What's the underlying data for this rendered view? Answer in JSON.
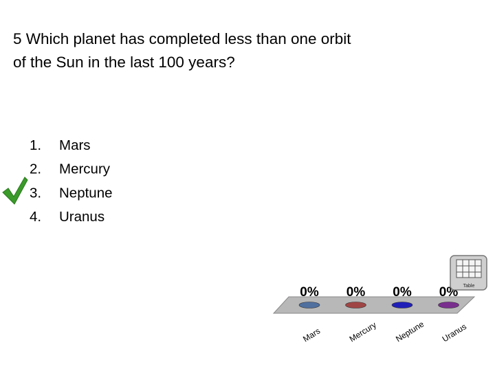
{
  "question": {
    "lines": [
      "5 Which planet has completed less than one orbit",
      "of the Sun in the last 100 years?"
    ]
  },
  "options": [
    {
      "number": "1.",
      "label": "Mars"
    },
    {
      "number": "2.",
      "label": "Mercury"
    },
    {
      "number": "3.",
      "label": "Neptune"
    },
    {
      "number": "4.",
      "label": "Uranus"
    }
  ],
  "table_button": "Table",
  "chart_data": {
    "type": "bar3d",
    "categories": [
      "Mars",
      "Mercury",
      "Neptune",
      "Uranus"
    ],
    "values": [
      0,
      0,
      0,
      0
    ],
    "value_labels": [
      "0%",
      "0%",
      "0%",
      "0%"
    ],
    "colors": [
      "#50709f",
      "#a04545",
      "#2020b8",
      "#7a2f8f"
    ]
  }
}
